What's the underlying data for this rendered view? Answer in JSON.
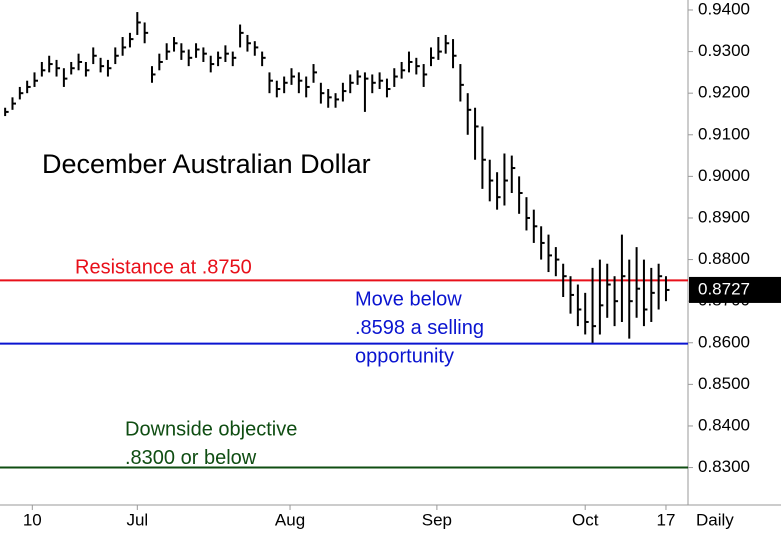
{
  "chart_data": {
    "type": "ohlc",
    "title": "December Australian Dollar",
    "x_label": "Daily",
    "x": [
      0,
      1,
      2,
      3,
      4,
      5,
      6,
      7,
      8,
      9,
      10,
      11,
      12,
      13,
      14,
      15,
      16,
      17,
      18,
      19,
      20,
      21,
      22,
      23,
      24,
      25,
      26,
      27,
      28,
      29,
      30,
      31,
      32,
      33,
      34,
      35,
      36,
      37,
      38,
      39,
      40,
      41,
      42,
      43,
      44,
      45,
      46,
      47,
      48,
      49,
      50,
      51,
      52,
      53,
      54,
      55,
      56,
      57,
      58,
      59,
      60,
      61,
      62,
      63,
      64,
      65,
      66,
      67,
      68,
      69,
      70,
      71,
      72,
      73,
      74,
      75,
      76,
      77,
      78,
      79,
      80,
      81,
      82,
      83,
      84,
      85,
      86,
      87,
      88,
      89,
      90
    ],
    "xlim": [
      -0.7,
      93
    ],
    "xticks": [
      {
        "value": 3.7,
        "label": "10"
      },
      {
        "value": 18,
        "label": "Jul"
      },
      {
        "value": 38.8,
        "label": "Aug"
      },
      {
        "value": 58.8,
        "label": "Sep"
      },
      {
        "value": 79,
        "label": "Oct"
      },
      {
        "value": 90,
        "label": "17"
      }
    ],
    "ylim": [
      0.821,
      0.9424
    ],
    "yticks": [
      {
        "value": 0.83,
        "label": "0.8300"
      },
      {
        "value": 0.84,
        "label": "0.8400"
      },
      {
        "value": 0.85,
        "label": "0.8500"
      },
      {
        "value": 0.86,
        "label": "0.8600"
      },
      {
        "value": 0.87,
        "label": "0.8700"
      },
      {
        "value": 0.88,
        "label": "0.8800"
      },
      {
        "value": 0.89,
        "label": "0.8900"
      },
      {
        "value": 0.9,
        "label": "0.9000"
      },
      {
        "value": 0.91,
        "label": "0.9100"
      },
      {
        "value": 0.92,
        "label": "0.9200"
      },
      {
        "value": 0.93,
        "label": "0.9300"
      },
      {
        "value": 0.94,
        "label": "0.9400"
      }
    ],
    "last_price": {
      "value": 0.8727,
      "label": "0.8727"
    },
    "series": [
      {
        "color": "#000000",
        "high": [
          0.9165,
          0.919,
          0.9215,
          0.923,
          0.925,
          0.9275,
          0.929,
          0.928,
          0.926,
          0.9275,
          0.9295,
          0.9275,
          0.931,
          0.9285,
          0.928,
          0.931,
          0.9335,
          0.9345,
          0.9395,
          0.937,
          0.9265,
          0.9295,
          0.932,
          0.9335,
          0.932,
          0.9305,
          0.932,
          0.931,
          0.929,
          0.93,
          0.9315,
          0.93,
          0.9365,
          0.934,
          0.9325,
          0.93,
          0.925,
          0.923,
          0.924,
          0.926,
          0.925,
          0.924,
          0.927,
          0.9225,
          0.921,
          0.92,
          0.9225,
          0.9245,
          0.9255,
          0.925,
          0.9245,
          0.925,
          0.9235,
          0.926,
          0.9275,
          0.93,
          0.9285,
          0.927,
          0.931,
          0.9335,
          0.934,
          0.933,
          0.927,
          0.92,
          0.9165,
          0.912,
          0.904,
          0.901,
          0.9055,
          0.905,
          0.9,
          0.895,
          0.892,
          0.888,
          0.886,
          0.883,
          0.879,
          0.876,
          0.874,
          0.872,
          0.878,
          0.88,
          0.879,
          0.876,
          0.886,
          0.88,
          0.883,
          0.88,
          0.878,
          0.879,
          0.876
        ],
        "low": [
          0.9145,
          0.916,
          0.9185,
          0.92,
          0.9215,
          0.924,
          0.925,
          0.924,
          0.9215,
          0.9245,
          0.9255,
          0.924,
          0.927,
          0.925,
          0.924,
          0.927,
          0.929,
          0.931,
          0.934,
          0.932,
          0.9225,
          0.9255,
          0.928,
          0.93,
          0.928,
          0.9265,
          0.9285,
          0.9275,
          0.925,
          0.9265,
          0.9275,
          0.9265,
          0.931,
          0.93,
          0.929,
          0.9265,
          0.92,
          0.919,
          0.92,
          0.922,
          0.92,
          0.919,
          0.9225,
          0.9175,
          0.9165,
          0.9165,
          0.918,
          0.92,
          0.922,
          0.9155,
          0.92,
          0.921,
          0.919,
          0.9215,
          0.9235,
          0.925,
          0.9245,
          0.9215,
          0.9265,
          0.928,
          0.9295,
          0.926,
          0.918,
          0.91,
          0.904,
          0.897,
          0.894,
          0.892,
          0.893,
          0.896,
          0.891,
          0.887,
          0.884,
          0.88,
          0.877,
          0.876,
          0.871,
          0.867,
          0.864,
          0.862,
          0.86,
          0.862,
          0.866,
          0.864,
          0.865,
          0.861,
          0.866,
          0.864,
          0.865,
          0.868,
          0.87
        ],
        "close": [
          0.9155,
          0.9175,
          0.92,
          0.9215,
          0.923,
          0.9255,
          0.927,
          0.926,
          0.9235,
          0.926,
          0.9275,
          0.9255,
          0.929,
          0.9265,
          0.926,
          0.929,
          0.931,
          0.933,
          0.937,
          0.9345,
          0.9245,
          0.9275,
          0.93,
          0.932,
          0.93,
          0.9285,
          0.9305,
          0.9295,
          0.927,
          0.9285,
          0.9295,
          0.9285,
          0.9345,
          0.932,
          0.931,
          0.9285,
          0.923,
          0.921,
          0.9225,
          0.924,
          0.923,
          0.9215,
          0.925,
          0.92,
          0.919,
          0.9185,
          0.9205,
          0.9225,
          0.924,
          0.9235,
          0.9225,
          0.923,
          0.921,
          0.924,
          0.9255,
          0.9275,
          0.9265,
          0.9245,
          0.9285,
          0.93,
          0.932,
          0.929,
          0.922,
          0.916,
          0.912,
          0.904,
          0.899,
          0.895,
          0.899,
          0.902,
          0.896,
          0.89,
          0.888,
          0.884,
          0.881,
          0.88,
          0.876,
          0.8715,
          0.868,
          0.865,
          0.864,
          0.869,
          0.874,
          0.87,
          0.876,
          0.87,
          0.873,
          0.868,
          0.872,
          0.876,
          0.8727
        ]
      }
    ],
    "levels": [
      {
        "value": 0.875,
        "color": "#e8101a",
        "text": [
          "Resistance at .8750"
        ]
      },
      {
        "value": 0.8598,
        "color": "#0a14d0",
        "text": [
          "Move below",
          ".8598 a selling",
          "opportunity"
        ]
      },
      {
        "value": 0.83,
        "color": "#0f4d12",
        "text": [
          "Downside objective",
          ".8300 or below"
        ]
      }
    ]
  }
}
